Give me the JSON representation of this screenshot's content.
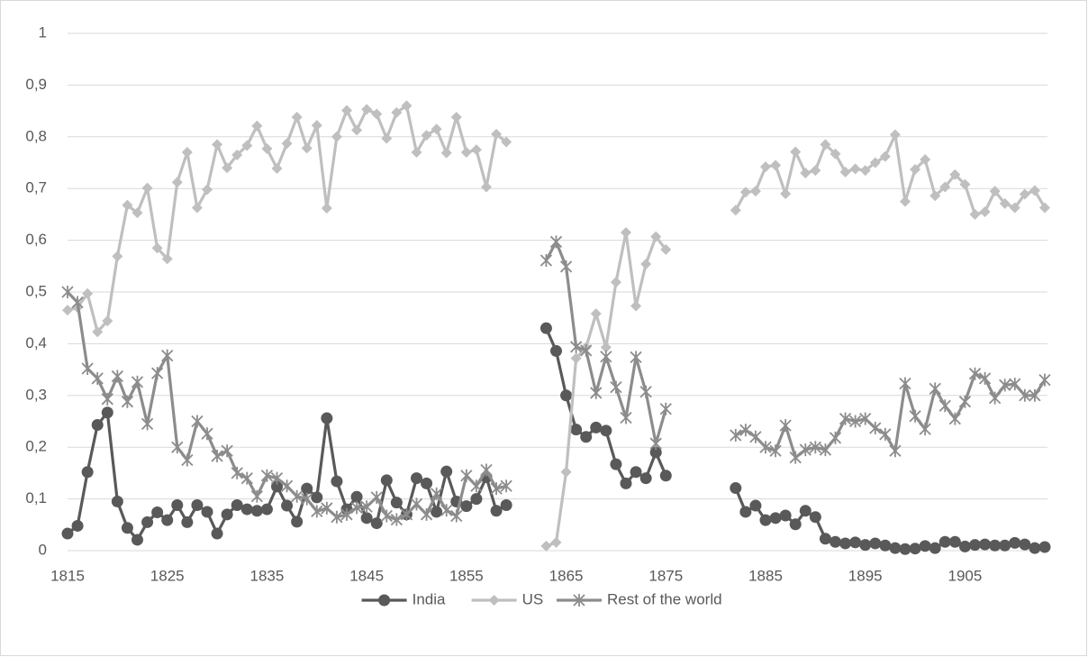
{
  "chart_data": {
    "type": "line",
    "x": [
      1815,
      1816,
      1817,
      1818,
      1819,
      1820,
      1821,
      1822,
      1823,
      1824,
      1825,
      1826,
      1827,
      1828,
      1829,
      1830,
      1831,
      1832,
      1833,
      1834,
      1835,
      1836,
      1837,
      1838,
      1839,
      1840,
      1841,
      1842,
      1843,
      1844,
      1845,
      1846,
      1847,
      1848,
      1849,
      1850,
      1851,
      1852,
      1853,
      1854,
      1855,
      1856,
      1857,
      1858,
      1859,
      1860,
      1861,
      1862,
      1863,
      1864,
      1865,
      1866,
      1867,
      1868,
      1869,
      1870,
      1871,
      1872,
      1873,
      1874,
      1875,
      1876,
      1877,
      1878,
      1879,
      1880,
      1881,
      1882,
      1883,
      1884,
      1885,
      1886,
      1887,
      1888,
      1889,
      1890,
      1891,
      1892,
      1893,
      1894,
      1895,
      1896,
      1897,
      1898,
      1899,
      1900,
      1901,
      1902,
      1903,
      1904,
      1905,
      1906,
      1907,
      1908,
      1909,
      1910,
      1911,
      1912,
      1913
    ],
    "xlim": [
      1815,
      1913
    ],
    "xticks": [
      1815,
      1825,
      1835,
      1845,
      1855,
      1865,
      1875,
      1885,
      1895,
      1905
    ],
    "ylim": [
      0,
      1
    ],
    "yticks": [
      0,
      {
        "value": 0.1,
        "label": "0,1"
      },
      {
        "value": 0.2,
        "label": "0,2"
      },
      {
        "value": 0.3,
        "label": "0,3"
      },
      {
        "value": 0.4,
        "label": "0,4"
      },
      {
        "value": 0.5,
        "label": "0,5"
      },
      {
        "value": 0.6,
        "label": "0,6"
      },
      {
        "value": 0.7,
        "label": "0,7"
      },
      {
        "value": 0.8,
        "label": "0,8"
      },
      {
        "value": 0.9,
        "label": "0,9"
      },
      1
    ],
    "grid": true,
    "legend": "bottom",
    "series": [
      {
        "name": "India",
        "color": "#595959",
        "marker": "circle",
        "values": [
          0.033,
          0.048,
          0.152,
          0.243,
          0.267,
          0.095,
          0.044,
          0.021,
          0.055,
          0.074,
          0.059,
          0.088,
          0.055,
          0.088,
          0.075,
          0.033,
          0.07,
          0.088,
          0.08,
          0.077,
          0.08,
          0.124,
          0.087,
          0.056,
          0.12,
          0.103,
          0.256,
          0.134,
          0.08,
          0.104,
          0.063,
          0.053,
          0.136,
          0.093,
          0.07,
          0.14,
          0.13,
          0.075,
          0.153,
          0.095,
          0.086,
          0.1,
          0.142,
          0.077,
          0.088,
          null,
          null,
          null,
          0.43,
          0.386,
          0.3,
          0.234,
          0.22,
          0.238,
          0.232,
          0.167,
          0.13,
          0.152,
          0.14,
          0.19,
          0.145,
          null,
          null,
          null,
          null,
          null,
          null,
          0.121,
          0.075,
          0.087,
          0.059,
          0.063,
          0.068,
          0.051,
          0.077,
          0.065,
          0.023,
          0.017,
          0.014,
          0.016,
          0.011,
          0.014,
          0.01,
          0.005,
          0.003,
          0.004,
          0.009,
          0.005,
          0.017,
          0.017,
          0.008,
          0.011,
          0.012,
          0.01,
          0.01,
          0.015,
          0.012,
          0.005,
          0.007
        ]
      },
      {
        "name": "US",
        "color": "#bfbfbf",
        "marker": "diamond",
        "values": [
          0.465,
          0.47,
          0.497,
          0.423,
          0.444,
          0.569,
          0.668,
          0.653,
          0.701,
          0.585,
          0.564,
          0.712,
          0.77,
          0.663,
          0.698,
          0.785,
          0.74,
          0.765,
          0.783,
          0.821,
          0.777,
          0.739,
          0.787,
          0.838,
          0.778,
          0.822,
          0.662,
          0.8,
          0.851,
          0.813,
          0.853,
          0.844,
          0.797,
          0.847,
          0.86,
          0.77,
          0.803,
          0.815,
          0.769,
          0.838,
          0.77,
          0.775,
          0.703,
          0.805,
          0.79,
          null,
          null,
          null,
          0.009,
          0.016,
          0.152,
          0.372,
          0.393,
          0.458,
          0.393,
          0.519,
          0.615,
          0.473,
          0.554,
          0.607,
          0.582,
          null,
          null,
          null,
          null,
          null,
          null,
          0.658,
          0.693,
          0.695,
          0.742,
          0.745,
          0.69,
          0.771,
          0.73,
          0.735,
          0.785,
          0.767,
          0.732,
          0.738,
          0.735,
          0.75,
          0.762,
          0.804,
          0.675,
          0.737,
          0.756,
          0.686,
          0.703,
          0.727,
          0.708,
          0.65,
          0.655,
          0.695,
          0.671,
          0.663,
          0.689,
          0.696,
          0.663
        ]
      },
      {
        "name": "Rest of the world",
        "color": "#8c8c8c",
        "marker": "star",
        "values": [
          0.5,
          0.48,
          0.352,
          0.333,
          0.293,
          0.337,
          0.288,
          0.326,
          0.245,
          0.343,
          0.377,
          0.2,
          0.175,
          0.25,
          0.226,
          0.183,
          0.193,
          0.15,
          0.14,
          0.105,
          0.145,
          0.14,
          0.125,
          0.105,
          0.1,
          0.076,
          0.082,
          0.065,
          0.07,
          0.083,
          0.085,
          0.103,
          0.067,
          0.06,
          0.07,
          0.09,
          0.07,
          0.11,
          0.078,
          0.067,
          0.145,
          0.125,
          0.156,
          0.12,
          0.125,
          null,
          null,
          null,
          0.561,
          0.597,
          0.549,
          0.394,
          0.387,
          0.305,
          0.375,
          0.316,
          0.257,
          0.374,
          0.307,
          0.207,
          0.274,
          null,
          null,
          null,
          null,
          null,
          null,
          0.223,
          0.233,
          0.22,
          0.2,
          0.193,
          0.242,
          0.18,
          0.195,
          0.2,
          0.195,
          0.218,
          0.255,
          0.25,
          0.255,
          0.237,
          0.225,
          0.193,
          0.323,
          0.26,
          0.235,
          0.313,
          0.28,
          0.255,
          0.288,
          0.342,
          0.333,
          0.295,
          0.32,
          0.322,
          0.3,
          0.3,
          0.33
        ]
      }
    ]
  }
}
